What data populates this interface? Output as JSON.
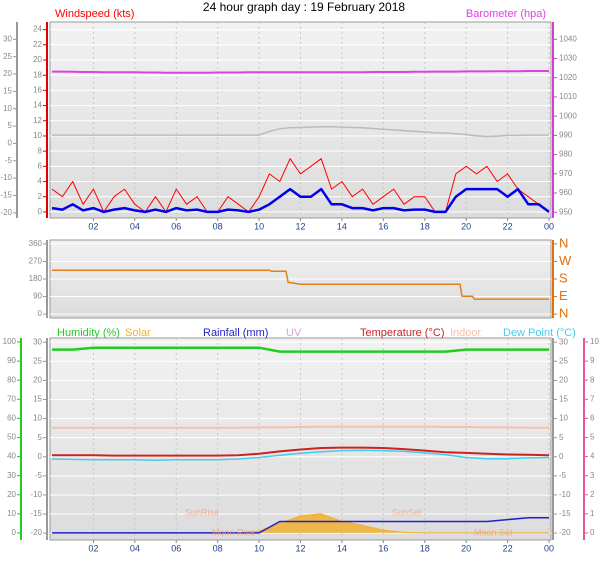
{
  "title": "24 hour graph day : 19 February 2018",
  "chart_data": [
    {
      "type": "line",
      "xlim": [
        0,
        24
      ],
      "x": [
        0,
        0.5,
        1,
        1.5,
        2,
        2.5,
        3,
        3.5,
        4,
        4.5,
        5,
        5.5,
        6,
        6.5,
        7,
        7.5,
        8,
        8.5,
        9,
        9.5,
        10,
        10.5,
        11,
        11.5,
        12,
        12.5,
        13,
        13.5,
        14,
        14.5,
        15,
        15.5,
        16,
        16.5,
        17,
        17.5,
        18,
        18.5,
        19,
        19.5,
        20,
        20.5,
        21,
        21.5,
        22,
        22.5,
        23,
        23.5,
        24
      ],
      "xticks": [
        {
          "value": 2,
          "label": "02"
        },
        {
          "value": 4,
          "label": "04"
        },
        {
          "value": 6,
          "label": "06"
        },
        {
          "value": 8,
          "label": "08"
        },
        10,
        12,
        14,
        16,
        18,
        20,
        22,
        {
          "value": 24,
          "label": "00"
        }
      ],
      "ylim": [
        -0.8,
        25
      ],
      "yticks": [
        0,
        2,
        4,
        6,
        8,
        10,
        12,
        14,
        16,
        18,
        20,
        22,
        24
      ],
      "y2lim": [
        947,
        1049
      ],
      "y2ticks": [
        950,
        960,
        970,
        980,
        990,
        1000,
        1010,
        1020,
        1030,
        1040
      ],
      "y3lim": [
        -21.5,
        35
      ],
      "y3ticks": [
        -20,
        -15,
        -10,
        -5,
        0,
        5,
        10,
        15,
        20,
        25,
        30
      ],
      "grid": true,
      "series": [
        {
          "name": "Windspeed (kts)",
          "color": "#ff0000",
          "width": 1,
          "values": [
            3,
            2,
            4,
            1,
            3,
            0,
            2,
            3,
            1,
            0,
            2,
            0,
            3,
            1,
            2,
            0,
            0,
            2,
            1,
            0,
            2,
            5,
            4,
            7,
            5,
            6,
            7,
            3,
            4,
            2,
            3,
            1,
            2,
            3,
            1,
            2,
            2,
            0,
            0,
            5,
            6,
            5,
            6,
            4,
            5,
            3,
            2,
            1,
            0
          ]
        },
        {
          "color": "#0000ee",
          "width": 2.5,
          "values": [
            0.5,
            0.3,
            1,
            0.2,
            0.5,
            0,
            0.3,
            0.5,
            0.2,
            0,
            0.3,
            0,
            0.5,
            0.2,
            0.3,
            0,
            0,
            0.3,
            0.2,
            0,
            0.3,
            1,
            2,
            3,
            2,
            2,
            3,
            1,
            1,
            0.5,
            0.5,
            0.2,
            0.5,
            0.5,
            0.2,
            0.3,
            0.3,
            0,
            0,
            2,
            3,
            3,
            3,
            3,
            2,
            3,
            1,
            1,
            0
          ]
        },
        {
          "name": "Barometer (hpa)",
          "color": "#e040e0",
          "width": 2,
          "axis": "y2",
          "values": [
            1023.2,
            1023.2,
            1023.1,
            1023.0,
            1023.0,
            1022.9,
            1022.9,
            1022.8,
            1022.8,
            1022.7,
            1022.7,
            1022.6,
            1022.6,
            1022.6,
            1022.6,
            1022.6,
            1022.7,
            1022.7,
            1022.7,
            1022.8,
            1022.8,
            1022.8,
            1022.8,
            1022.8,
            1022.8,
            1022.8,
            1022.9,
            1022.9,
            1022.9,
            1022.9,
            1022.9,
            1023.0,
            1023.0,
            1023.0,
            1023.0,
            1023.1,
            1023.1,
            1023.2,
            1023.2,
            1023.2,
            1023.3,
            1023.3,
            1023.3,
            1023.4,
            1023.4,
            1023.4,
            1023.5,
            1023.5,
            1023.5
          ]
        },
        {
          "color": "#bbbbbb",
          "width": 1.5,
          "axis": "y3",
          "values": [
            2.4,
            2.4,
            2.4,
            2.4,
            2.4,
            2.4,
            2.4,
            2.4,
            2.4,
            2.4,
            2.4,
            2.4,
            2.4,
            2.4,
            2.4,
            2.4,
            2.4,
            2.4,
            2.4,
            2.4,
            2.4,
            3.5,
            4.2,
            4.5,
            4.6,
            4.7,
            4.8,
            4.8,
            4.7,
            4.6,
            4.5,
            4.3,
            4.1,
            3.9,
            3.7,
            3.5,
            3.3,
            3.1,
            3.0,
            2.8,
            2.5,
            2.2,
            2.0,
            2.1,
            2.3,
            2.3,
            2.4,
            2.4,
            2.4
          ]
        }
      ]
    },
    {
      "type": "line",
      "xlim": [
        0,
        24
      ],
      "x": [
        0,
        10.5,
        10.6,
        11.3,
        11.4,
        12,
        19.7,
        19.8,
        20.3,
        20.4,
        24
      ],
      "ylim": [
        -20,
        380
      ],
      "yticks": [
        0,
        90,
        180,
        270,
        360
      ],
      "y2lim": [
        -20,
        380
      ],
      "y2ticks": [
        {
          "value": 0,
          "label": "N"
        },
        {
          "value": 90,
          "label": "E"
        },
        {
          "value": 180,
          "label": "S"
        },
        {
          "value": 270,
          "label": "W"
        },
        {
          "value": 360,
          "label": "N"
        }
      ],
      "grid": true,
      "series": [
        {
          "color": "#e08020",
          "width": 1.5,
          "values": [
            225,
            225,
            220,
            220,
            163,
            153,
            153,
            92,
            92,
            77,
            77
          ]
        }
      ]
    },
    {
      "type": "line",
      "xlim": [
        0,
        24
      ],
      "x": [
        0,
        1,
        2,
        3,
        4,
        5,
        6,
        7,
        8,
        9,
        10,
        11,
        12,
        13,
        14,
        15,
        16,
        17,
        18,
        19,
        20,
        21,
        22,
        23,
        24
      ],
      "xticks": [
        {
          "value": 2,
          "label": "02"
        },
        {
          "value": 4,
          "label": "04"
        },
        {
          "value": 6,
          "label": "06"
        },
        {
          "value": 8,
          "label": "08"
        },
        10,
        12,
        14,
        16,
        18,
        20,
        22,
        {
          "value": 24,
          "label": "00"
        }
      ],
      "ylim": [
        -3.7,
        102.1
      ],
      "yticks": [
        0,
        10,
        20,
        30,
        40,
        50,
        60,
        70,
        80,
        90,
        100
      ],
      "y2lim": [
        -21.8,
        31.1
      ],
      "y2ticks": [
        -20,
        -15,
        -10,
        -5,
        0,
        5,
        10,
        15,
        20,
        25,
        30
      ],
      "y3lim": [
        -0.37,
        10.21
      ],
      "y3ticks": [
        0,
        1,
        2,
        3,
        4,
        5,
        6,
        7,
        8,
        9,
        10
      ],
      "y3label": "UV",
      "grid": true,
      "series": [
        {
          "name": "Humidity (%)",
          "color": "#22cc22",
          "width": 2.5,
          "values": [
            96,
            96,
            97,
            97,
            97,
            97,
            97,
            97,
            97,
            97,
            97,
            95,
            95,
            95,
            95,
            95,
            95,
            95,
            95,
            95,
            96,
            96,
            96,
            96,
            96
          ]
        },
        {
          "name": "Solar",
          "color": "#f0b030",
          "fill": true,
          "values": [
            0,
            0,
            0,
            0,
            0,
            0,
            0,
            0,
            0,
            0,
            1,
            5,
            9,
            10,
            6,
            4,
            1.5,
            0.3,
            0,
            0,
            0,
            0,
            0,
            0,
            0
          ]
        },
        {
          "name": "Rainfall (mm)",
          "color": "#2222cc",
          "width": 1.5,
          "values": [
            0,
            0,
            0,
            0,
            0,
            0,
            0,
            0,
            0,
            0,
            0,
            6,
            6,
            6,
            6,
            6,
            6,
            6,
            6,
            6,
            6,
            6,
            7,
            8,
            8
          ]
        },
        {
          "name": "Temperature (°C)",
          "color": "#cc2222",
          "width": 2,
          "axis": "y2",
          "values": [
            0.4,
            0.4,
            0.4,
            0.3,
            0.3,
            0.3,
            0.3,
            0.3,
            0.3,
            0.4,
            0.8,
            1.4,
            1.9,
            2.3,
            2.4,
            2.4,
            2.3,
            2.0,
            1.6,
            1.2,
            1.0,
            0.8,
            0.6,
            0.5,
            0.4
          ]
        },
        {
          "name": "Indoor",
          "color": "#f5c0a8",
          "width": 2,
          "axis": "y2",
          "values": [
            7.6,
            7.6,
            7.6,
            7.6,
            7.6,
            7.6,
            7.6,
            7.6,
            7.6,
            7.6,
            7.7,
            7.7,
            7.8,
            7.9,
            7.9,
            7.9,
            7.9,
            7.9,
            7.9,
            7.8,
            7.8,
            7.7,
            7.7,
            7.6,
            7.6
          ]
        },
        {
          "name": "Dew Point (°C)",
          "color": "#44ccee",
          "width": 1.5,
          "axis": "y2",
          "values": [
            -0.6,
            -0.7,
            -0.8,
            -0.8,
            -0.8,
            -0.9,
            -0.8,
            -0.8,
            -0.8,
            -0.6,
            -0.2,
            0.4,
            0.9,
            1.3,
            1.6,
            1.7,
            1.6,
            1.4,
            1.0,
            0.5,
            -0.2,
            -0.5,
            -0.5,
            -0.3,
            -0.2
          ]
        }
      ],
      "annotations": [
        "SunRise",
        "SunSet",
        "Moon Rise",
        "Moon Set"
      ]
    }
  ]
}
